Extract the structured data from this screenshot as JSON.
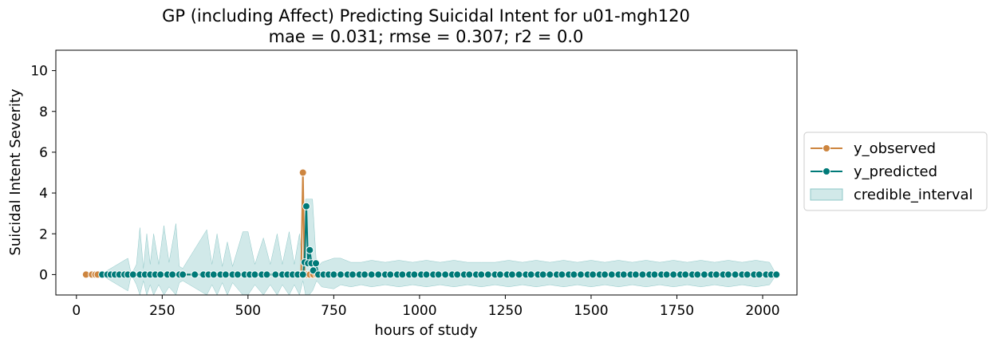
{
  "chart_data": {
    "type": "line",
    "title": "GP (including Affect) Predicting Suicidal Intent for u01-mgh120",
    "subtitle": "mae = 0.031; rmse = 0.307; r2 = 0.0",
    "xlabel": "hours of study",
    "ylabel": "Suicidal Intent Severity",
    "xlim": [
      -60,
      2100
    ],
    "ylim": [
      -1,
      11
    ],
    "xticks": [
      0,
      250,
      500,
      750,
      1000,
      1250,
      1500,
      1750,
      2000
    ],
    "yticks": [
      0,
      2,
      4,
      6,
      8,
      10
    ],
    "legend": {
      "placement": "right-outside",
      "entries": [
        "y_observed",
        "y_predicted",
        "credible_interval"
      ]
    },
    "colors": {
      "observed": "#cd853f",
      "predicted": "#007a78",
      "band": "#b3dada"
    },
    "series": [
      {
        "name": "y_observed",
        "points": [
          [
            28,
            0
          ],
          [
            45,
            0
          ],
          [
            55,
            0
          ],
          [
            62,
            0
          ],
          [
            655,
            0
          ],
          [
            660,
            5
          ],
          [
            665,
            0
          ],
          [
            672,
            0
          ],
          [
            680,
            0
          ],
          [
            690,
            0
          ],
          [
            700,
            0
          ]
        ]
      },
      {
        "name": "y_predicted",
        "points": [
          [
            75,
            0
          ],
          [
            90,
            0
          ],
          [
            100,
            0
          ],
          [
            112,
            0
          ],
          [
            125,
            0
          ],
          [
            140,
            0
          ],
          [
            150,
            0
          ],
          [
            165,
            0
          ],
          [
            185,
            0
          ],
          [
            200,
            0
          ],
          [
            215,
            0
          ],
          [
            230,
            0
          ],
          [
            245,
            0
          ],
          [
            265,
            0
          ],
          [
            280,
            0
          ],
          [
            300,
            0
          ],
          [
            310,
            0
          ],
          [
            345,
            0
          ],
          [
            370,
            0
          ],
          [
            385,
            0
          ],
          [
            400,
            0
          ],
          [
            420,
            0
          ],
          [
            435,
            0
          ],
          [
            455,
            0
          ],
          [
            470,
            0
          ],
          [
            490,
            0
          ],
          [
            505,
            0
          ],
          [
            520,
            0
          ],
          [
            540,
            0
          ],
          [
            555,
            0
          ],
          [
            580,
            0
          ],
          [
            600,
            0
          ],
          [
            615,
            0
          ],
          [
            630,
            0
          ],
          [
            645,
            0
          ],
          [
            660,
            0
          ],
          [
            665,
            0.6
          ],
          [
            670,
            3.35
          ],
          [
            675,
            0.55
          ],
          [
            680,
            1.2
          ],
          [
            685,
            0.55
          ],
          [
            690,
            0.2
          ],
          [
            698,
            0.55
          ],
          [
            705,
            0
          ],
          [
            720,
            0
          ],
          [
            735,
            0
          ],
          [
            750,
            0
          ],
          [
            770,
            0
          ],
          [
            790,
            0
          ],
          [
            805,
            0
          ],
          [
            825,
            0
          ],
          [
            840,
            0
          ],
          [
            860,
            0
          ],
          [
            880,
            0
          ],
          [
            900,
            0
          ],
          [
            915,
            0
          ],
          [
            935,
            0
          ],
          [
            950,
            0
          ],
          [
            970,
            0
          ],
          [
            985,
            0
          ],
          [
            1005,
            0
          ],
          [
            1020,
            0
          ],
          [
            1040,
            0
          ],
          [
            1055,
            0
          ],
          [
            1075,
            0
          ],
          [
            1095,
            0
          ],
          [
            1110,
            0
          ],
          [
            1130,
            0
          ],
          [
            1145,
            0
          ],
          [
            1165,
            0
          ],
          [
            1180,
            0
          ],
          [
            1200,
            0
          ],
          [
            1220,
            0
          ],
          [
            1235,
            0
          ],
          [
            1255,
            0
          ],
          [
            1270,
            0
          ],
          [
            1290,
            0
          ],
          [
            1310,
            0
          ],
          [
            1325,
            0
          ],
          [
            1345,
            0
          ],
          [
            1360,
            0
          ],
          [
            1380,
            0
          ],
          [
            1400,
            0
          ],
          [
            1415,
            0
          ],
          [
            1435,
            0
          ],
          [
            1450,
            0
          ],
          [
            1470,
            0
          ],
          [
            1490,
            0
          ],
          [
            1505,
            0
          ],
          [
            1525,
            0
          ],
          [
            1540,
            0
          ],
          [
            1560,
            0
          ],
          [
            1580,
            0
          ],
          [
            1595,
            0
          ],
          [
            1615,
            0
          ],
          [
            1630,
            0
          ],
          [
            1650,
            0
          ],
          [
            1670,
            0
          ],
          [
            1685,
            0
          ],
          [
            1705,
            0
          ],
          [
            1720,
            0
          ],
          [
            1740,
            0
          ],
          [
            1760,
            0
          ],
          [
            1775,
            0
          ],
          [
            1795,
            0
          ],
          [
            1810,
            0
          ],
          [
            1830,
            0
          ],
          [
            1850,
            0
          ],
          [
            1865,
            0
          ],
          [
            1885,
            0
          ],
          [
            1900,
            0
          ],
          [
            1920,
            0
          ],
          [
            1940,
            0
          ],
          [
            1955,
            0
          ],
          [
            1975,
            0
          ],
          [
            1990,
            0
          ],
          [
            2010,
            0
          ],
          [
            2025,
            0
          ],
          [
            2040,
            0
          ]
        ]
      }
    ],
    "credible_interval": {
      "name": "credible_interval",
      "points": [
        [
          70,
          0,
          0
        ],
        [
          150,
          -0.8,
          0.8
        ],
        [
          160,
          0,
          0
        ],
        [
          175,
          -0.5,
          0.5
        ],
        [
          185,
          -1,
          2.3
        ],
        [
          195,
          -0.3,
          0.3
        ],
        [
          205,
          -1,
          2
        ],
        [
          215,
          -0.5,
          0.5
        ],
        [
          225,
          -1,
          2
        ],
        [
          240,
          -0.5,
          0.5
        ],
        [
          255,
          -1,
          2.4
        ],
        [
          270,
          -0.6,
          0.6
        ],
        [
          290,
          -1,
          2.5
        ],
        [
          300,
          -0.4,
          0.4
        ],
        [
          310,
          -0.3,
          0.3
        ],
        [
          380,
          -1,
          2.2
        ],
        [
          395,
          -0.5,
          0.5
        ],
        [
          410,
          -1,
          2
        ],
        [
          425,
          -0.4,
          0.4
        ],
        [
          440,
          -1,
          1.6
        ],
        [
          455,
          -0.4,
          0.4
        ],
        [
          485,
          -1,
          2.1
        ],
        [
          500,
          -1,
          2.1
        ],
        [
          520,
          -0.5,
          0.5
        ],
        [
          545,
          -1,
          1.8
        ],
        [
          565,
          -0.5,
          0.5
        ],
        [
          585,
          -1,
          2
        ],
        [
          600,
          -0.5,
          0.5
        ],
        [
          620,
          -1,
          2.1
        ],
        [
          635,
          -0.5,
          0.5
        ],
        [
          650,
          -1,
          2
        ],
        [
          660,
          -0.3,
          0.3
        ],
        [
          668,
          -1,
          3.7
        ],
        [
          678,
          -1,
          3.7
        ],
        [
          688,
          -0.8,
          3.7
        ],
        [
          700,
          -0.3,
          0.3
        ],
        [
          715,
          -0.6,
          0.6
        ],
        [
          750,
          -0.7,
          0.8
        ],
        [
          770,
          -0.5,
          0.8
        ],
        [
          800,
          -0.6,
          0.6
        ],
        [
          830,
          -0.5,
          0.6
        ],
        [
          860,
          -0.6,
          0.7
        ],
        [
          900,
          -0.5,
          0.6
        ],
        [
          940,
          -0.6,
          0.7
        ],
        [
          980,
          -0.5,
          0.6
        ],
        [
          1020,
          -0.6,
          0.7
        ],
        [
          1060,
          -0.5,
          0.6
        ],
        [
          1100,
          -0.6,
          0.7
        ],
        [
          1140,
          -0.5,
          0.6
        ],
        [
          1180,
          -0.6,
          0.6
        ],
        [
          1220,
          -0.5,
          0.6
        ],
        [
          1260,
          -0.6,
          0.7
        ],
        [
          1300,
          -0.5,
          0.6
        ],
        [
          1340,
          -0.6,
          0.7
        ],
        [
          1380,
          -0.5,
          0.6
        ],
        [
          1420,
          -0.6,
          0.7
        ],
        [
          1460,
          -0.5,
          0.6
        ],
        [
          1500,
          -0.6,
          0.7
        ],
        [
          1540,
          -0.5,
          0.6
        ],
        [
          1580,
          -0.6,
          0.7
        ],
        [
          1620,
          -0.5,
          0.6
        ],
        [
          1660,
          -0.6,
          0.7
        ],
        [
          1700,
          -0.5,
          0.6
        ],
        [
          1740,
          -0.6,
          0.7
        ],
        [
          1780,
          -0.5,
          0.6
        ],
        [
          1820,
          -0.6,
          0.7
        ],
        [
          1860,
          -0.5,
          0.6
        ],
        [
          1900,
          -0.6,
          0.7
        ],
        [
          1940,
          -0.5,
          0.6
        ],
        [
          1980,
          -0.6,
          0.7
        ],
        [
          2020,
          -0.5,
          0.6
        ],
        [
          2040,
          0,
          0
        ]
      ]
    }
  }
}
